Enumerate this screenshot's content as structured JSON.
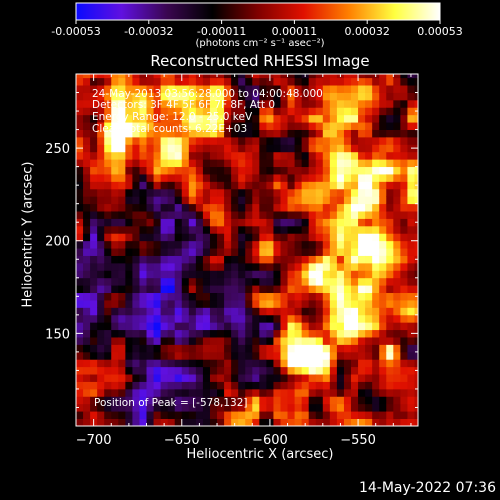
{
  "colorbar": {
    "ticks": [
      "-0.00053",
      "-0.00032",
      "-0.00011",
      "0.00011",
      "0.00032",
      "0.00053"
    ],
    "units": "(photons cm⁻² s⁻¹ asec⁻²)",
    "stops": [
      "#0a0aff",
      "#6010e0",
      "#3a0650",
      "#000000",
      "#800000",
      "#e01000",
      "#ff8000",
      "#ffff40",
      "#ffffff"
    ]
  },
  "info": {
    "time_range": "24-May-2013 03:56:28.000 to 04:00:48.000",
    "detectors": "Detectors: 3F 4F 5F 6F 7F 8F, Att 0",
    "energy": "Energy Range: 12.0 - 25.0 keV",
    "clean": "Clean     Total counts: 6.22E+03"
  },
  "peak_text": "Position of Peak = [-578,132]",
  "timestamp": "14-May-2022 07:36",
  "chart_data": {
    "type": "heatmap",
    "title": "Reconstructed RHESSI Image",
    "xlabel": "Heliocentric X (arcsec)",
    "ylabel": "Heliocentric Y (arcsec)",
    "xlim": [
      -710,
      -516
    ],
    "ylim": [
      100,
      290
    ],
    "xticks": [
      -700,
      -650,
      -600,
      -550
    ],
    "yticks": [
      150,
      200,
      250
    ],
    "color_range": [
      -0.00053,
      0.00053
    ],
    "peak_position": [
      -578,
      132
    ],
    "features": [
      {
        "region": "right band",
        "x_range": [
          -590,
          -520
        ],
        "y_range": [
          110,
          280
        ],
        "level": "high"
      },
      {
        "region": "upper-left",
        "x_range": [
          -705,
          -620
        ],
        "y_range": [
          230,
          285
        ],
        "level": "high"
      },
      {
        "region": "left-center",
        "x_range": [
          -700,
          -620
        ],
        "y_range": [
          120,
          220
        ],
        "level": "low"
      }
    ]
  }
}
